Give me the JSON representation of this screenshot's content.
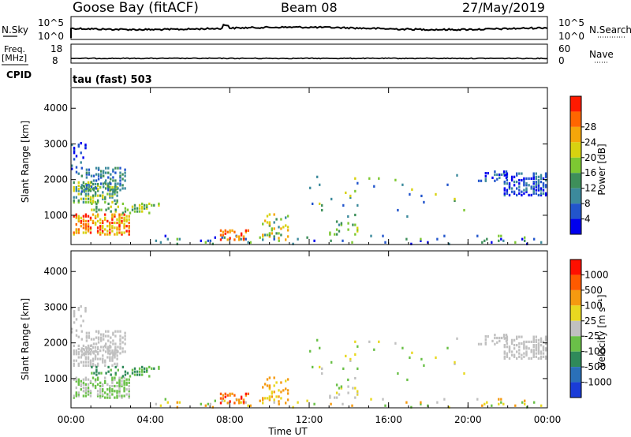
{
  "header": {
    "station": "Goose Bay (fitACF)",
    "beam": "Beam 08",
    "date": "27/May/2019"
  },
  "top_panels": {
    "nsky_label": "N.Sky",
    "nsearch_label": "N.Search",
    "nsky_ticks": [
      "10^5",
      "10^0"
    ],
    "nsearch_ticks": [
      "10^5",
      "10^0"
    ],
    "freq_label": "Freq.",
    "freq_unit": "[MHz]",
    "freq_ticks": [
      "18",
      "8"
    ],
    "nave_label": "Nave",
    "nave_ticks": [
      "60",
      "0"
    ],
    "cpid_label": "CPID",
    "cpid_value": "tau (fast) 503"
  },
  "chart_data": [
    {
      "type": "heatmap",
      "title": "",
      "ylabel": "Slant Range [km]",
      "yticks": [
        1000,
        2000,
        3000,
        4000
      ],
      "ylim": [
        180,
        4580
      ],
      "xlim_hours": [
        0,
        24
      ],
      "colorbar": {
        "label": "Power [dB]",
        "ticks": [
          "4",
          "8",
          "12",
          "16",
          "20",
          "24",
          "28"
        ],
        "colors": [
          "#0000ee",
          "#2255cc",
          "#3c8a9c",
          "#3e8f5a",
          "#7dc832",
          "#d8d210",
          "#f5a60a",
          "#ff6600",
          "#ff1a00"
        ]
      }
    },
    {
      "type": "heatmap",
      "title": "",
      "ylabel": "Slant Range [km]",
      "yticks": [
        1000,
        2000,
        3000,
        4000
      ],
      "ylim": [
        180,
        4580
      ],
      "xlim_hours": [
        0,
        24
      ],
      "colorbar": {
        "label": "Velocity [m s⁻¹]",
        "ticks": [
          "1000",
          "500",
          "100",
          "25",
          "-25",
          "-100",
          "-500",
          "-1000"
        ],
        "colors": [
          "#1a3cd8",
          "#2a70b8",
          "#2f8a5a",
          "#6ac048",
          "#c0c0c0",
          "#e8d820",
          "#f59a10",
          "#ff5a00",
          "#ff1000"
        ]
      }
    }
  ],
  "time_axis": {
    "label": "Time UT",
    "ticks": [
      "00:00",
      "04:00",
      "08:00",
      "12:00",
      "16:00",
      "20:00",
      "00:00"
    ]
  }
}
